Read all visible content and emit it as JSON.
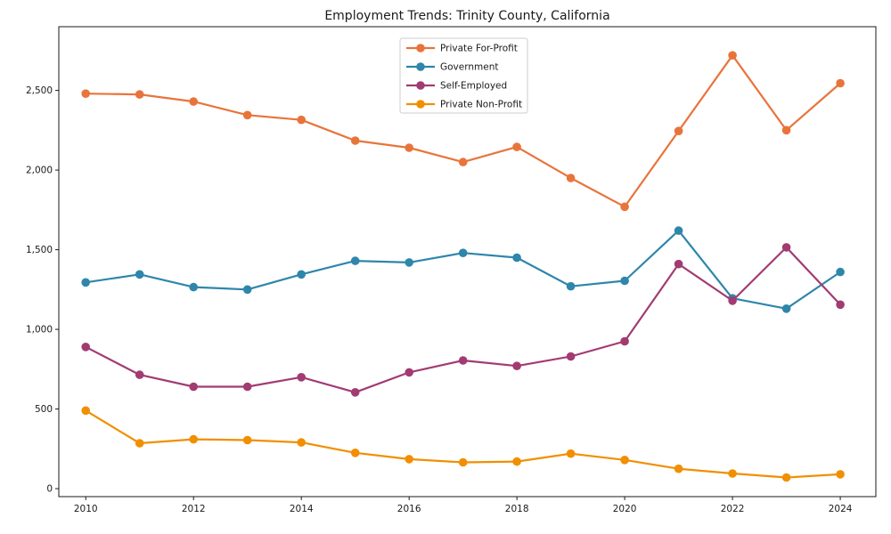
{
  "chart_data": {
    "type": "line",
    "title": "Employment Trends: Trinity County, California",
    "xlabel": "",
    "ylabel": "",
    "x": [
      2010,
      2011,
      2012,
      2013,
      2014,
      2015,
      2016,
      2017,
      2018,
      2019,
      2020,
      2021,
      2022,
      2023,
      2024
    ],
    "series": [
      {
        "name": "Private For-Profit",
        "color": "#E8743B",
        "values": [
          2480,
          2475,
          2430,
          2345,
          2315,
          2185,
          2140,
          2050,
          2145,
          1950,
          1770,
          2245,
          2720,
          2250,
          2545
        ]
      },
      {
        "name": "Government",
        "color": "#2E86AB",
        "values": [
          1295,
          1345,
          1265,
          1250,
          1345,
          1430,
          1420,
          1480,
          1450,
          1270,
          1305,
          1620,
          1195,
          1130,
          1360
        ]
      },
      {
        "name": "Self-Employed",
        "color": "#A23B72",
        "values": [
          890,
          715,
          640,
          640,
          700,
          605,
          730,
          805,
          770,
          830,
          925,
          1410,
          1180,
          1515,
          1155
        ]
      },
      {
        "name": "Private Non-Profit",
        "color": "#F18F01",
        "values": [
          490,
          285,
          310,
          305,
          290,
          225,
          185,
          165,
          170,
          220,
          180,
          125,
          95,
          70,
          90
        ]
      }
    ],
    "xticks": [
      2010,
      2012,
      2014,
      2016,
      2018,
      2020,
      2022,
      2024
    ],
    "yticks": [
      0,
      500,
      1000,
      1500,
      2000,
      2500
    ],
    "ytick_labels": [
      "0",
      "500",
      "1,000",
      "1,500",
      "2,000",
      "2,500"
    ],
    "xlim": [
      2009.5,
      2024.66
    ],
    "ylim": [
      -50,
      2900
    ],
    "grid": false,
    "legend_position": "upper center",
    "marker": "circle",
    "frame_color": "#1a1a1a",
    "legend_border_color": "#cccccc"
  }
}
